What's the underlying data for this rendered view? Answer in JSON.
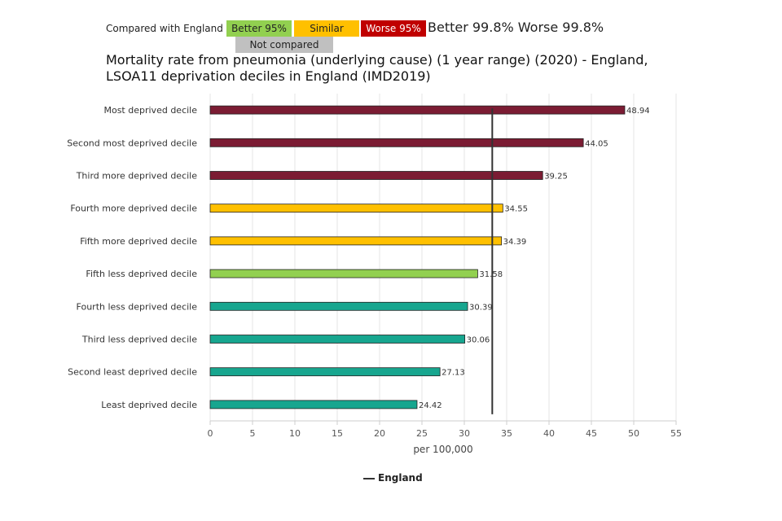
{
  "legend": {
    "compared_label": "Compared with England",
    "better_label": "Better 95%",
    "similar_label": "Similar",
    "worse_label": "Worse 95%",
    "not_compared_label": "Not compared",
    "extra_text": "Better 99.8% Worse 99.8%",
    "england_label": "England"
  },
  "colors": {
    "worse": "#7b1c33",
    "similar": "#ffc000",
    "better": "#92d050",
    "not_compared": "#17a68f",
    "england_line": "#333333"
  },
  "chart_data": {
    "type": "bar",
    "orientation": "horizontal",
    "title": "Mortality rate from pneumonia (underlying cause) (1 year range) (2020) - England, LSOA11 deprivation deciles in England (IMD2019)",
    "xlabel": "per 100,000",
    "ylabel": "",
    "xlim": [
      0,
      55
    ],
    "x_ticks": [
      0,
      5,
      10,
      15,
      20,
      25,
      30,
      35,
      40,
      45,
      50,
      55
    ],
    "grid": true,
    "reference_line": {
      "name": "England",
      "value": 33.3
    },
    "categories": [
      "Most deprived decile",
      "Second most deprived decile",
      "Third more deprived decile",
      "Fourth more deprived decile",
      "Fifth more deprived decile",
      "Fifth less deprived decile",
      "Fourth less deprived decile",
      "Third less deprived decile",
      "Second least deprived decile",
      "Least deprived decile"
    ],
    "values": [
      48.94,
      44.05,
      39.25,
      34.55,
      34.39,
      31.58,
      30.39,
      30.06,
      27.13,
      24.42
    ],
    "value_labels": [
      "48.94",
      "44.05",
      "39.25",
      "34.55",
      "34.39",
      "31.58",
      "30.39",
      "30.06",
      "27.13",
      "24.42"
    ],
    "comparison": [
      "worse",
      "worse",
      "worse",
      "similar",
      "similar",
      "better",
      "not_compared",
      "not_compared",
      "not_compared",
      "not_compared"
    ],
    "legend_position": "bottom"
  }
}
